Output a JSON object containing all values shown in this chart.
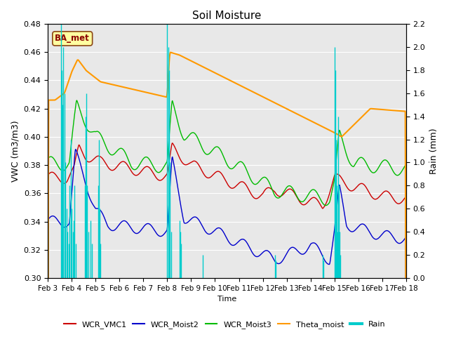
{
  "title": "Soil Moisture",
  "ylabel_left": "VWC (m3/m3)",
  "ylabel_right": "Rain (mm)",
  "xlabel": "Time",
  "station_label": "BA_met",
  "ylim_left": [
    0.3,
    0.48
  ],
  "ylim_right": [
    0.0,
    2.2
  ],
  "yticks_left": [
    0.3,
    0.32,
    0.34,
    0.36,
    0.38,
    0.4,
    0.42,
    0.44,
    0.46,
    0.48
  ],
  "yticks_right": [
    0.0,
    0.2,
    0.4,
    0.6,
    0.8,
    1.0,
    1.2,
    1.4,
    1.6,
    1.8,
    2.0,
    2.2
  ],
  "colors": {
    "WCR_VMC1": "#cc0000",
    "WCR_Moist2": "#0000cc",
    "WCR_Moist3": "#00bb00",
    "Theta_moist": "#ff9900",
    "Rain": "#00cccc"
  },
  "bg_color": "#e8e8e8",
  "xticklabels": [
    "Feb 3",
    "Feb 4",
    "Feb 5",
    "Feb 6",
    "Feb 7",
    "Feb 8",
    "Feb 9",
    "Feb 10",
    "Feb 11",
    "Feb 12",
    "Feb 13",
    "Feb 14",
    "Feb 15",
    "Feb 16",
    "Feb 17",
    "Feb 18"
  ]
}
